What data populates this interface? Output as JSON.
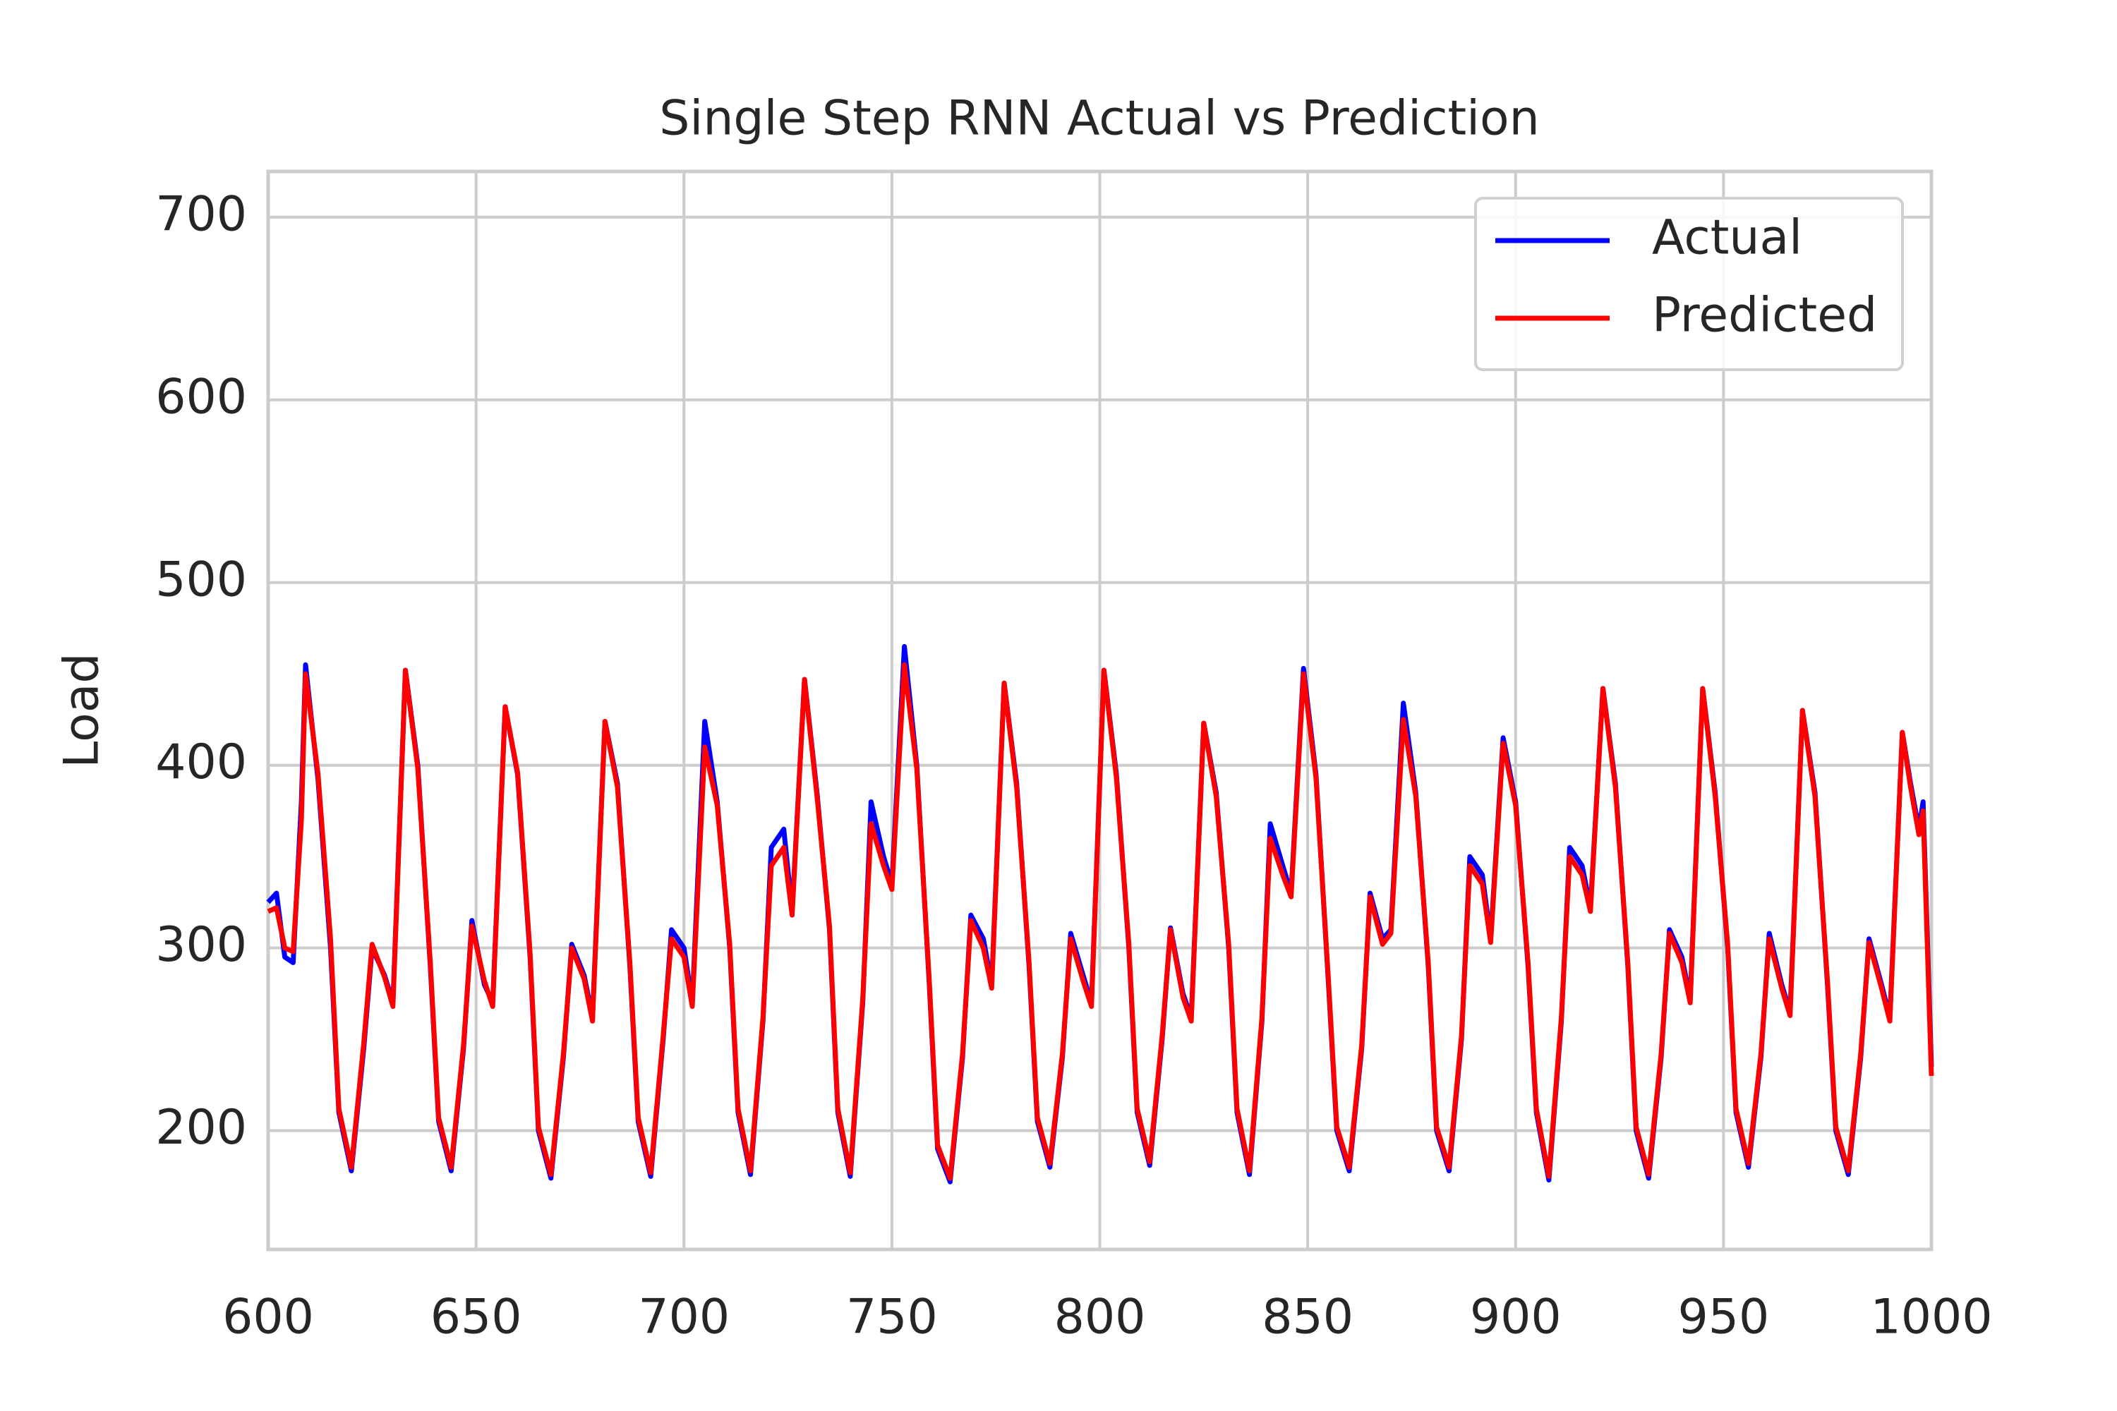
{
  "chart_data": {
    "type": "line",
    "title": "Single Step RNN Actual vs Prediction",
    "y_label": "Load",
    "x": [
      600,
      602,
      604,
      606,
      608,
      609,
      612,
      615,
      617,
      620,
      623,
      625,
      628,
      630,
      633,
      636,
      639,
      641,
      644,
      647,
      649,
      652,
      654,
      657,
      660,
      663,
      665,
      668,
      671,
      673,
      676,
      678,
      681,
      684,
      687,
      689,
      692,
      695,
      697,
      700,
      702,
      705,
      708,
      711,
      713,
      716,
      719,
      721,
      724,
      726,
      729,
      732,
      735,
      737,
      740,
      743,
      745,
      748,
      750,
      753,
      756,
      759,
      761,
      764,
      767,
      769,
      772,
      774,
      777,
      780,
      783,
      785,
      788,
      791,
      793,
      796,
      798,
      801,
      804,
      807,
      809,
      812,
      815,
      817,
      820,
      822,
      825,
      828,
      831,
      833,
      836,
      839,
      841,
      844,
      846,
      849,
      852,
      855,
      857,
      860,
      863,
      865,
      868,
      870,
      873,
      876,
      879,
      881,
      884,
      887,
      889,
      892,
      894,
      897,
      900,
      903,
      905,
      908,
      911,
      913,
      916,
      918,
      921,
      924,
      927,
      929,
      932,
      935,
      937,
      940,
      942,
      945,
      948,
      951,
      953,
      956,
      959,
      961,
      964,
      966,
      969,
      972,
      975,
      977,
      980,
      983,
      985,
      988,
      990,
      993,
      995,
      997,
      998,
      1000
    ],
    "series": [
      {
        "name": "Actual",
        "color": "#0000ff",
        "values": [
          325,
          330,
          295,
          292,
          380,
          455,
          392,
          300,
          210,
          178,
          245,
          300,
          285,
          270,
          452,
          400,
          290,
          205,
          178,
          245,
          315,
          280,
          270,
          432,
          395,
          295,
          200,
          174,
          240,
          302,
          285,
          262,
          424,
          390,
          290,
          205,
          175,
          250,
          310,
          300,
          270,
          424,
          380,
          300,
          210,
          176,
          260,
          355,
          365,
          320,
          447,
          385,
          310,
          210,
          175,
          270,
          380,
          350,
          335,
          465,
          400,
          280,
          190,
          172,
          240,
          318,
          305,
          280,
          445,
          390,
          290,
          205,
          180,
          240,
          308,
          285,
          270,
          452,
          395,
          300,
          210,
          181,
          250,
          311,
          275,
          262,
          423,
          385,
          300,
          210,
          176,
          260,
          368,
          345,
          330,
          453,
          395,
          280,
          200,
          178,
          245,
          330,
          305,
          310,
          434,
          385,
          290,
          200,
          178,
          250,
          350,
          340,
          305,
          415,
          380,
          290,
          210,
          173,
          260,
          355,
          345,
          322,
          442,
          390,
          290,
          200,
          174,
          240,
          310,
          295,
          272,
          442,
          385,
          300,
          210,
          180,
          240,
          308,
          280,
          265,
          430,
          385,
          280,
          200,
          176,
          240,
          305,
          280,
          262,
          418,
          390,
          365,
          380,
          235
        ]
      },
      {
        "name": "Predicted",
        "color": "#ff0000",
        "values": [
          320,
          322,
          300,
          298,
          370,
          450,
          395,
          305,
          212,
          180,
          248,
          302,
          284,
          268,
          452,
          398,
          292,
          207,
          180,
          247,
          312,
          282,
          268,
          432,
          396,
          297,
          202,
          176,
          242,
          300,
          283,
          260,
          424,
          388,
          292,
          207,
          177,
          252,
          305,
          295,
          268,
          410,
          378,
          302,
          212,
          178,
          262,
          345,
          355,
          318,
          447,
          383,
          312,
          212,
          177,
          272,
          368,
          345,
          332,
          455,
          398,
          282,
          192,
          174,
          242,
          315,
          300,
          278,
          445,
          388,
          292,
          207,
          182,
          242,
          305,
          282,
          268,
          452,
          393,
          302,
          212,
          183,
          252,
          310,
          273,
          260,
          423,
          383,
          302,
          212,
          178,
          262,
          360,
          340,
          328,
          450,
          393,
          282,
          202,
          180,
          247,
          328,
          302,
          308,
          425,
          383,
          292,
          202,
          180,
          252,
          345,
          335,
          303,
          412,
          378,
          292,
          212,
          175,
          262,
          350,
          340,
          320,
          442,
          388,
          292,
          202,
          176,
          242,
          308,
          292,
          270,
          442,
          383,
          302,
          212,
          182,
          242,
          305,
          278,
          263,
          430,
          383,
          282,
          202,
          178,
          242,
          303,
          278,
          260,
          418,
          388,
          362,
          375,
          230
        ]
      }
    ],
    "xlim": [
      600,
      1000
    ],
    "ylim": [
      135,
      725
    ],
    "xticks": [
      600,
      650,
      700,
      750,
      800,
      850,
      900,
      950,
      1000
    ],
    "yticks": [
      200,
      300,
      400,
      500,
      600,
      700
    ],
    "grid": true,
    "legend": "upper right"
  }
}
